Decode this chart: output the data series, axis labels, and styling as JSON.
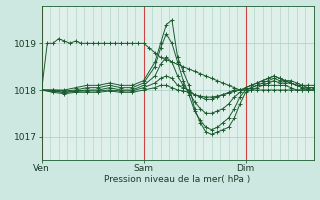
{
  "bg_color": "#cce8e0",
  "plot_bg_color": "#dff0ea",
  "grid_color": "#a8cfc4",
  "line_color": "#1a5c30",
  "xlabel": "Pression niveau de la mer( hPa )",
  "yticks": [
    1017,
    1018,
    1019
  ],
  "ylim": [
    1016.5,
    1019.8
  ],
  "xlim": [
    0,
    96
  ],
  "day_labels": [
    [
      "Ven",
      0
    ],
    [
      "Sam",
      36
    ],
    [
      "Dim",
      72
    ]
  ],
  "vlines_x": [
    0,
    36,
    72
  ],
  "series": [
    [
      0,
      1018.0,
      2,
      1019.0,
      4,
      1019.0,
      6,
      1019.1,
      8,
      1019.05,
      10,
      1019.0,
      12,
      1019.05,
      14,
      1019.0,
      16,
      1019.0,
      18,
      1019.0,
      20,
      1019.0,
      22,
      1019.0,
      24,
      1019.0,
      26,
      1019.0,
      28,
      1019.0,
      30,
      1019.0,
      32,
      1019.0,
      34,
      1019.0,
      36,
      1019.0,
      38,
      1018.9,
      40,
      1018.8,
      42,
      1018.7,
      44,
      1018.65,
      46,
      1018.6,
      48,
      1018.55,
      50,
      1018.5,
      52,
      1018.45,
      54,
      1018.4,
      56,
      1018.35,
      58,
      1018.3,
      60,
      1018.25,
      62,
      1018.2,
      64,
      1018.15,
      66,
      1018.1,
      68,
      1018.05,
      70,
      1018.0,
      72,
      1018.0,
      74,
      1018.0,
      76,
      1018.0,
      78,
      1018.0,
      80,
      1018.0,
      82,
      1018.0,
      84,
      1018.0,
      86,
      1018.0,
      88,
      1018.0,
      90,
      1018.0,
      92,
      1018.0,
      94,
      1018.0,
      96,
      1018.0
    ],
    [
      0,
      1018.0,
      4,
      1018.0,
      8,
      1018.0,
      12,
      1018.05,
      16,
      1018.1,
      20,
      1018.1,
      24,
      1018.15,
      28,
      1018.1,
      32,
      1018.1,
      36,
      1018.2,
      40,
      1018.6,
      42,
      1019.0,
      44,
      1019.4,
      46,
      1019.5,
      48,
      1018.7,
      50,
      1018.4,
      52,
      1018.1,
      54,
      1017.6,
      56,
      1017.3,
      58,
      1017.1,
      60,
      1017.05,
      62,
      1017.1,
      64,
      1017.15,
      66,
      1017.2,
      68,
      1017.4,
      70,
      1017.7,
      72,
      1017.95,
      74,
      1018.0,
      76,
      1018.05,
      78,
      1018.1,
      80,
      1018.1,
      82,
      1018.1,
      84,
      1018.1,
      86,
      1018.1,
      88,
      1018.05,
      90,
      1018.0,
      92,
      1018.0,
      94,
      1018.0,
      96,
      1018.0
    ],
    [
      0,
      1018.0,
      4,
      1018.0,
      8,
      1017.98,
      12,
      1018.0,
      16,
      1018.05,
      20,
      1018.05,
      24,
      1018.1,
      28,
      1018.05,
      32,
      1018.05,
      36,
      1018.15,
      40,
      1018.5,
      42,
      1018.9,
      44,
      1019.2,
      46,
      1019.0,
      48,
      1018.6,
      50,
      1018.2,
      52,
      1017.9,
      54,
      1017.55,
      56,
      1017.35,
      58,
      1017.2,
      60,
      1017.15,
      62,
      1017.2,
      64,
      1017.3,
      66,
      1017.4,
      68,
      1017.6,
      70,
      1017.85,
      72,
      1018.0,
      74,
      1018.05,
      76,
      1018.1,
      78,
      1018.15,
      80,
      1018.2,
      82,
      1018.25,
      84,
      1018.2,
      86,
      1018.2,
      88,
      1018.15,
      90,
      1018.1,
      92,
      1018.05,
      94,
      1018.0,
      96,
      1018.0
    ],
    [
      0,
      1018.0,
      4,
      1017.98,
      8,
      1017.95,
      12,
      1017.98,
      16,
      1018.0,
      20,
      1018.0,
      24,
      1018.05,
      28,
      1018.0,
      32,
      1018.0,
      36,
      1018.1,
      40,
      1018.3,
      42,
      1018.55,
      44,
      1018.7,
      46,
      1018.6,
      48,
      1018.3,
      50,
      1018.1,
      52,
      1017.95,
      54,
      1017.75,
      56,
      1017.6,
      58,
      1017.5,
      60,
      1017.5,
      62,
      1017.55,
      64,
      1017.6,
      66,
      1017.7,
      68,
      1017.85,
      70,
      1017.95,
      72,
      1018.05,
      74,
      1018.1,
      76,
      1018.15,
      78,
      1018.2,
      80,
      1018.25,
      82,
      1018.3,
      84,
      1018.25,
      86,
      1018.2,
      88,
      1018.15,
      90,
      1018.1,
      92,
      1018.05,
      94,
      1018.05,
      96,
      1018.05
    ],
    [
      0,
      1018.0,
      4,
      1017.97,
      8,
      1017.95,
      12,
      1017.97,
      16,
      1017.98,
      20,
      1017.98,
      24,
      1018.0,
      28,
      1017.98,
      32,
      1017.98,
      36,
      1018.05,
      40,
      1018.15,
      42,
      1018.25,
      44,
      1018.3,
      46,
      1018.25,
      48,
      1018.1,
      50,
      1018.05,
      52,
      1018.0,
      54,
      1017.9,
      56,
      1017.85,
      58,
      1017.8,
      60,
      1017.8,
      62,
      1017.85,
      64,
      1017.9,
      66,
      1017.95,
      68,
      1018.0,
      70,
      1018.0,
      72,
      1018.05,
      74,
      1018.1,
      76,
      1018.15,
      78,
      1018.2,
      80,
      1018.25,
      82,
      1018.3,
      84,
      1018.25,
      86,
      1018.2,
      88,
      1018.2,
      90,
      1018.15,
      92,
      1018.1,
      94,
      1018.1,
      96,
      1018.1
    ],
    [
      0,
      1018.0,
      4,
      1017.95,
      8,
      1017.92,
      12,
      1017.95,
      16,
      1017.95,
      20,
      1017.95,
      24,
      1017.98,
      28,
      1017.95,
      32,
      1017.95,
      36,
      1018.0,
      40,
      1018.05,
      42,
      1018.1,
      44,
      1018.1,
      46,
      1018.05,
      48,
      1018.0,
      50,
      1017.98,
      52,
      1017.95,
      54,
      1017.9,
      56,
      1017.87,
      58,
      1017.85,
      60,
      1017.85,
      62,
      1017.87,
      64,
      1017.9,
      66,
      1017.93,
      68,
      1017.97,
      70,
      1018.0,
      72,
      1018.0,
      74,
      1018.05,
      76,
      1018.1,
      78,
      1018.1,
      80,
      1018.15,
      82,
      1018.2,
      84,
      1018.15,
      86,
      1018.15,
      88,
      1018.15,
      90,
      1018.1,
      92,
      1018.1,
      94,
      1018.05,
      96,
      1018.05
    ]
  ]
}
